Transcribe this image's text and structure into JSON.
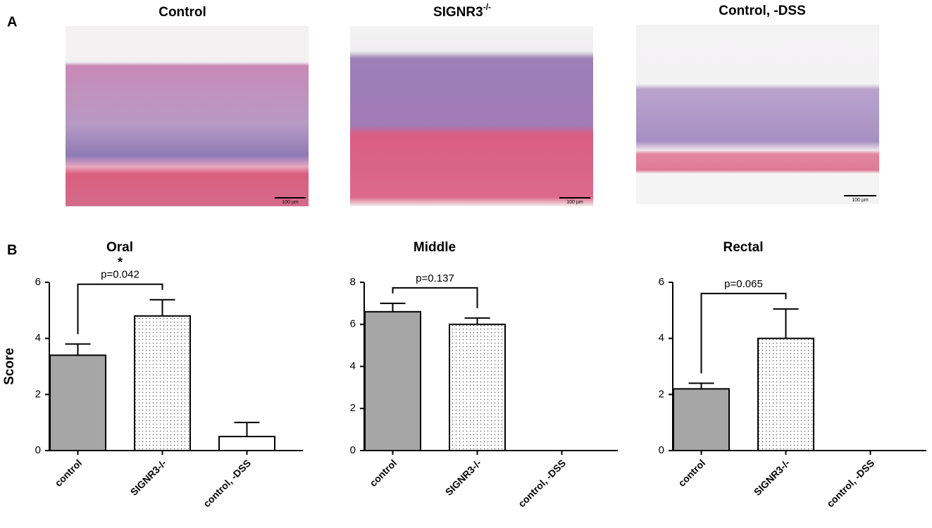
{
  "panel_labels": [
    "A",
    "B"
  ],
  "images": [
    {
      "title": "Control",
      "scale_bar": "100 µm"
    },
    {
      "title": "SIGNR3",
      "title_superscript": "-/-",
      "scale_bar": "100 µm"
    },
    {
      "title": "Control, -DSS",
      "scale_bar": "100 µm"
    }
  ],
  "chart_data": [
    {
      "type": "bar",
      "title": "Oral",
      "y_label": "Score",
      "categories": [
        "control",
        "SIGNR3-/-",
        "control, -DSS"
      ],
      "values": [
        3.4,
        4.8,
        0.5
      ],
      "errors": [
        0.4,
        0.58,
        0.5
      ],
      "colors": [
        "#a6a6a6",
        "#ffffff",
        "#ffffff"
      ],
      "patterns": [
        "solid",
        "dots",
        "solid"
      ],
      "ylim": [
        0,
        6
      ],
      "yticks": [
        0,
        2,
        4,
        6
      ],
      "p_label": "p=0.042",
      "significance": "*"
    },
    {
      "type": "bar",
      "title": "Middle",
      "categories": [
        "control",
        "SIGNR3-/-",
        "control, -DSS"
      ],
      "values": [
        6.6,
        6.0,
        null
      ],
      "errors": [
        0.4,
        0.3,
        null
      ],
      "colors": [
        "#a6a6a6",
        "#ffffff",
        "#ffffff"
      ],
      "patterns": [
        "solid",
        "dots",
        "solid"
      ],
      "ylim": [
        0,
        8
      ],
      "yticks": [
        0,
        2,
        4,
        6,
        8
      ],
      "p_label": "p=0.137"
    },
    {
      "type": "bar",
      "title": "Rectal",
      "categories": [
        "control",
        "SIGNR3-/-",
        "control, -DSS"
      ],
      "values": [
        2.2,
        4.0,
        null
      ],
      "errors": [
        0.2,
        1.05,
        null
      ],
      "colors": [
        "#a6a6a6",
        "#ffffff",
        "#ffffff"
      ],
      "patterns": [
        "solid",
        "dots",
        "solid"
      ],
      "ylim": [
        0,
        6
      ],
      "yticks": [
        0,
        2,
        4,
        6
      ],
      "p_label": "p=0.065"
    }
  ]
}
